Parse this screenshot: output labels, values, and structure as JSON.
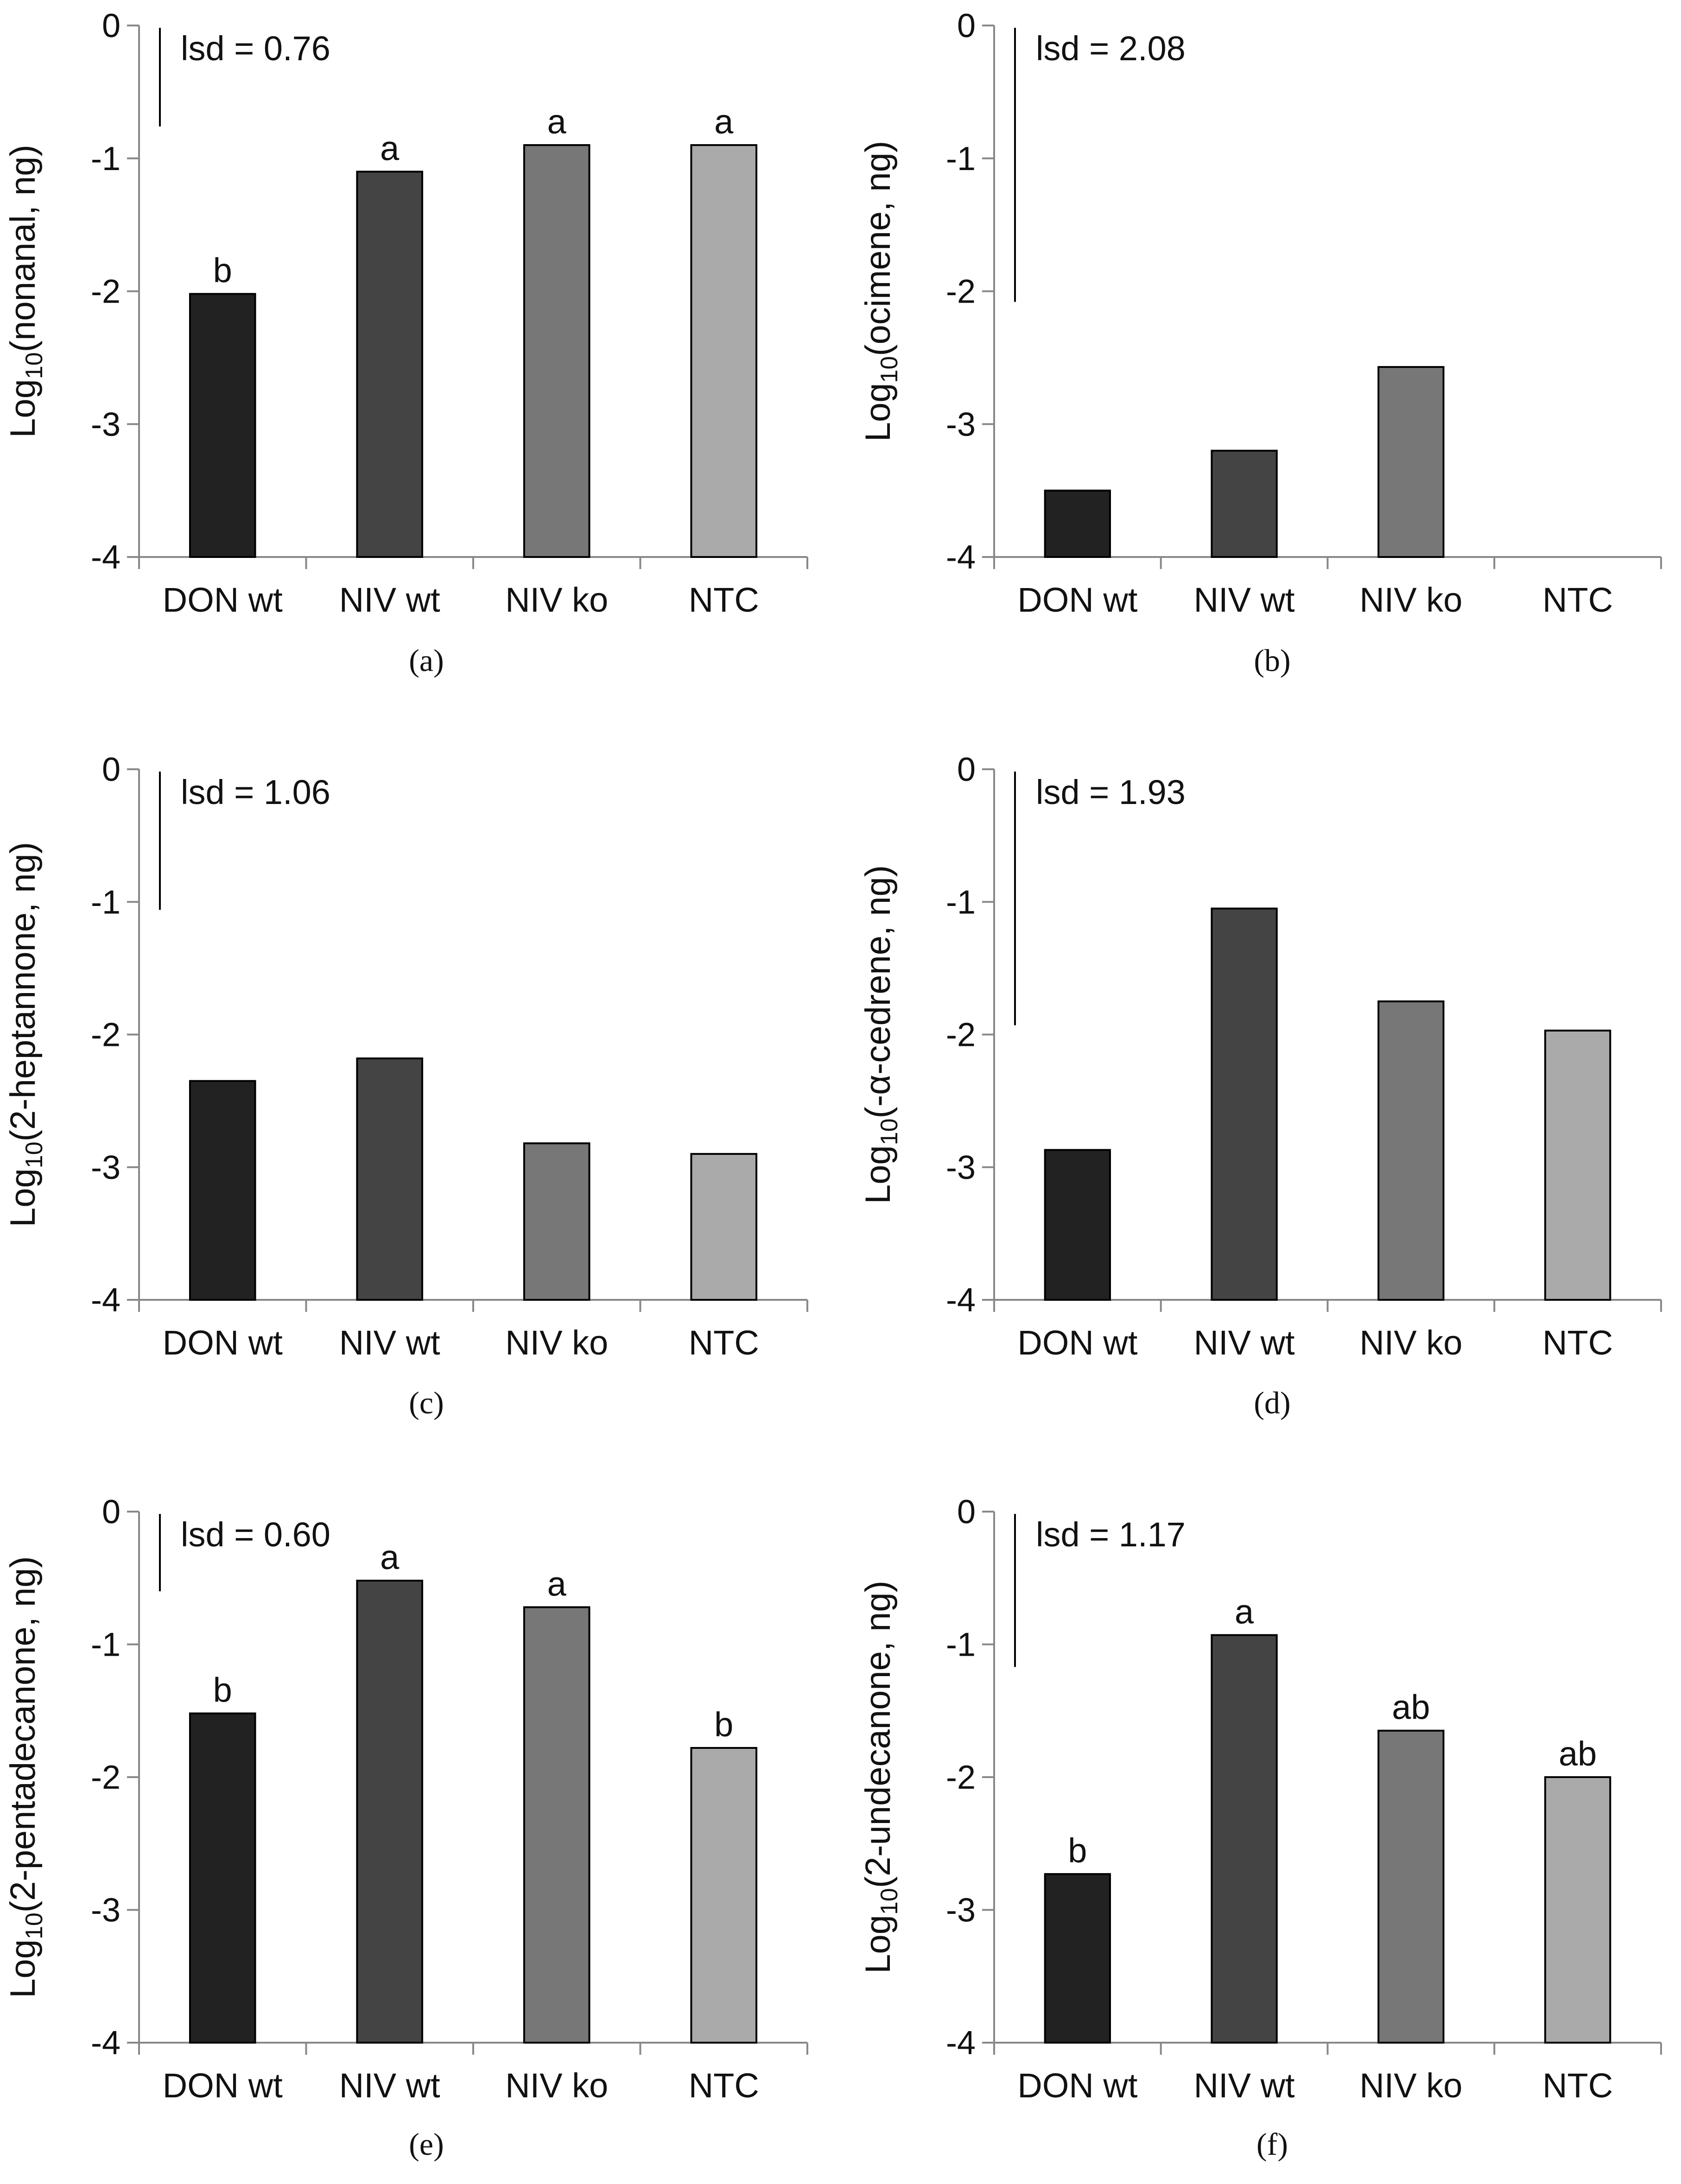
{
  "chart_data": [
    {
      "type": "bar",
      "panel": "a",
      "panel_label": "(a)",
      "ylabel_prefix": "Log",
      "ylabel_sub": "10",
      "ylabel_suffix": "(nonanal, ng)",
      "categories": [
        "DON wt",
        "NIV wt",
        "NIV ko",
        "NTC"
      ],
      "values": [
        -2.02,
        -1.1,
        -0.9,
        -0.9
      ],
      "letters": [
        "b",
        "a",
        "a",
        "a"
      ],
      "lsd_label": "lsd = 0.76",
      "lsd_value": 0.76,
      "ylim": [
        -4,
        0
      ],
      "yticks": [
        "0",
        "-1",
        "-2",
        "-3",
        "-4"
      ],
      "colors": [
        "#222222",
        "#444444",
        "#777777",
        "#aaaaaa"
      ]
    },
    {
      "type": "bar",
      "panel": "b",
      "panel_label": "(b)",
      "ylabel_prefix": "Log",
      "ylabel_sub": "10",
      "ylabel_suffix": "(ocimene, ng)",
      "categories": [
        "DON wt",
        "NIV wt",
        "NIV ko",
        "NTC"
      ],
      "values": [
        -3.5,
        -3.2,
        -2.57,
        null
      ],
      "letters": [
        "",
        "",
        "",
        ""
      ],
      "lsd_label": "lsd = 2.08",
      "lsd_value": 2.08,
      "ylim": [
        -4,
        0
      ],
      "yticks": [
        "0",
        "-1",
        "-2",
        "-3",
        "-4"
      ],
      "colors": [
        "#222222",
        "#444444",
        "#777777",
        "#aaaaaa"
      ]
    },
    {
      "type": "bar",
      "panel": "c",
      "panel_label": "(c)",
      "ylabel_prefix": "Log",
      "ylabel_sub": "10",
      "ylabel_suffix": "(2-heptannone, ng)",
      "categories": [
        "DON wt",
        "NIV wt",
        "NIV ko",
        "NTC"
      ],
      "values": [
        -2.35,
        -2.18,
        -2.82,
        -2.9
      ],
      "letters": [
        "",
        "",
        "",
        ""
      ],
      "lsd_label": "lsd = 1.06",
      "lsd_value": 1.06,
      "ylim": [
        -4,
        0
      ],
      "yticks": [
        "0",
        "-1",
        "-2",
        "-3",
        "-4"
      ],
      "colors": [
        "#222222",
        "#444444",
        "#777777",
        "#aaaaaa"
      ]
    },
    {
      "type": "bar",
      "panel": "d",
      "panel_label": "(d)",
      "ylabel_prefix": "Log",
      "ylabel_sub": "10",
      "ylabel_suffix": "(-α-cedrene, ng)",
      "categories": [
        "DON wt",
        "NIV wt",
        "NIV ko",
        "NTC"
      ],
      "values": [
        -2.87,
        -1.05,
        -1.75,
        -1.97
      ],
      "letters": [
        "",
        "",
        "",
        ""
      ],
      "lsd_label": "lsd = 1.93",
      "lsd_value": 1.93,
      "ylim": [
        -4,
        0
      ],
      "yticks": [
        "0",
        "-1",
        "-2",
        "-3",
        "-4"
      ],
      "colors": [
        "#222222",
        "#444444",
        "#777777",
        "#aaaaaa"
      ]
    },
    {
      "type": "bar",
      "panel": "e",
      "panel_label": "(e)",
      "ylabel_prefix": "Log",
      "ylabel_sub": "10",
      "ylabel_suffix": "(2-pentadecanone, ng)",
      "categories": [
        "DON wt",
        "NIV wt",
        "NIV ko",
        "NTC"
      ],
      "values": [
        -1.52,
        -0.52,
        -0.72,
        -1.78
      ],
      "letters": [
        "b",
        "a",
        "a",
        "b"
      ],
      "lsd_label": "lsd = 0.60",
      "lsd_value": 0.6,
      "ylim": [
        -4,
        0
      ],
      "yticks": [
        "0",
        "-1",
        "-2",
        "-3",
        "-4"
      ],
      "colors": [
        "#222222",
        "#444444",
        "#777777",
        "#aaaaaa"
      ]
    },
    {
      "type": "bar",
      "panel": "f",
      "panel_label": "(f)",
      "ylabel_prefix": "Log",
      "ylabel_sub": "10",
      "ylabel_suffix": "(2-undecanone, ng)",
      "categories": [
        "DON wt",
        "NIV wt",
        "NIV ko",
        "NTC"
      ],
      "values": [
        -2.73,
        -0.93,
        -1.65,
        -2.0
      ],
      "letters": [
        "b",
        "a",
        "ab",
        "ab"
      ],
      "lsd_label": "lsd = 1.17",
      "lsd_value": 1.17,
      "ylim": [
        -4,
        0
      ],
      "yticks": [
        "0",
        "-1",
        "-2",
        "-3",
        "-4"
      ],
      "colors": [
        "#222222",
        "#444444",
        "#777777",
        "#aaaaaa"
      ]
    }
  ]
}
